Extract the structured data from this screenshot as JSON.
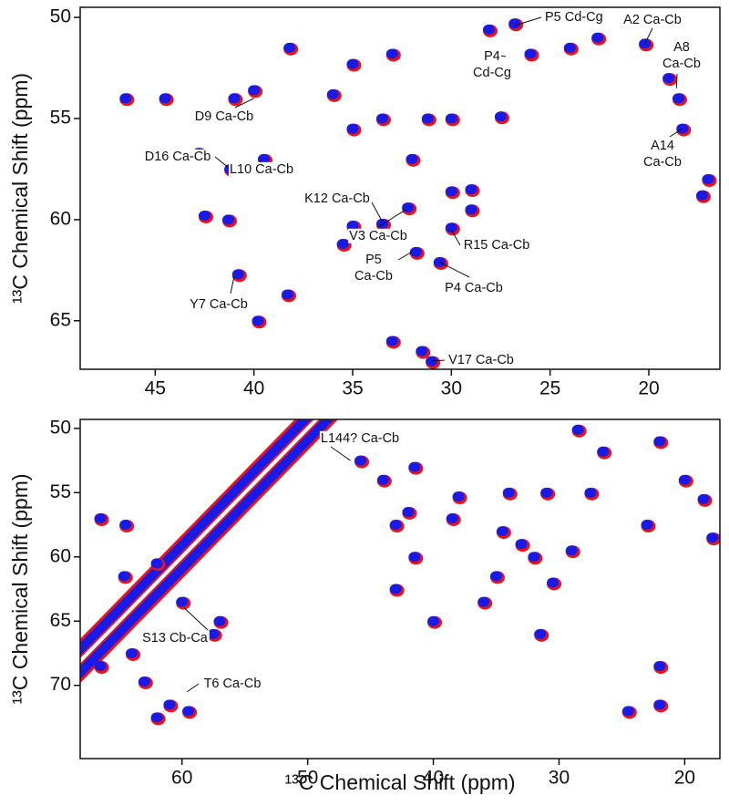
{
  "chart_data": [
    {
      "type": "contour",
      "ylabel": "¹³C Chemical Shift (ppm)",
      "xlim": [
        48.8,
        16.4
      ],
      "ylim": [
        49.5,
        67.4
      ],
      "xticks": [
        45,
        40,
        35,
        30,
        25,
        20
      ],
      "yticks": [
        50,
        55,
        60,
        65
      ],
      "contour_colors": [
        "#e8141b",
        "#1a1ae6"
      ],
      "diagonal": false,
      "peaks": {
        "x": [
          46.5,
          44.5,
          42.8,
          41.2,
          39.5,
          41,
          40,
          38.2,
          33.5,
          31.2,
          35,
          30,
          32,
          29,
          27.5,
          28.1,
          26.8,
          26,
          24,
          22.6,
          20.2,
          19,
          18.5,
          18.3,
          17,
          17.3,
          42.5,
          41.3,
          40.8,
          38.3,
          39.8,
          35,
          33.5,
          32.2,
          31.8,
          30.6,
          30,
          29,
          30,
          35.5,
          33,
          31.5,
          31,
          36,
          33,
          35
        ],
        "y": [
          54,
          54,
          56.7,
          57.5,
          57,
          54,
          53.6,
          51.5,
          55,
          55,
          55.5,
          55,
          57,
          58.5,
          54.9,
          50.6,
          50.3,
          51.8,
          51.5,
          51,
          51.3,
          53,
          54,
          55.5,
          58,
          58.8,
          59.8,
          60,
          62.7,
          63.7,
          65,
          60.3,
          60.2,
          59.4,
          61.6,
          62.1,
          60.4,
          59.5,
          58.6,
          61.2,
          66,
          66.5,
          67,
          53.8,
          51.8,
          52.3
        ]
      },
      "annotations": [
        {
          "text": [
            "P5 Cd-Cg"
          ],
          "x": 26.8,
          "y": 50.4
        },
        {
          "text": [
            "A2 Ca-Cb"
          ],
          "x": 20.2,
          "y": 51.3
        },
        {
          "text": [
            "P4",
            "Cd-Cg"
          ],
          "x": 28.2,
          "y": 51.8
        },
        {
          "text": [
            "A8",
            "Ca-Cb"
          ],
          "x": 18.6,
          "y": 53.5
        },
        {
          "text": [
            "A14",
            "Ca-Cb"
          ],
          "x": 18.3,
          "y": 55.5
        },
        {
          "text": [
            "D9 Ca-Cb"
          ],
          "x": 40,
          "y": 54
        },
        {
          "text": [
            "D16 Ca-Cb"
          ],
          "x": 41.2,
          "y": 57.5
        },
        {
          "text": [
            "L10 Ca-Cb"
          ],
          "x": 39.9,
          "y": 57.4
        },
        {
          "text": [
            "K12 Ca-Cb"
          ],
          "x": 33.5,
          "y": 60.1
        },
        {
          "text": [
            "V3 Ca-Cb"
          ],
          "x": 32.3,
          "y": 59.5
        },
        {
          "text": [
            "R15 Ca-Cb"
          ],
          "x": 30,
          "y": 60.5
        },
        {
          "text": [
            "P5",
            "Ca-Cb"
          ],
          "x": 32,
          "y": 61.6
        },
        {
          "text": [
            "P4 Ca-Cb"
          ],
          "x": 30.6,
          "y": 62.1
        },
        {
          "text": [
            "Y7 Ca-Cb"
          ],
          "x": 41,
          "y": 62.8
        },
        {
          "text": [
            "V17 Ca-Cb"
          ],
          "x": 31,
          "y": 67
        }
      ]
    },
    {
      "type": "contour",
      "xlabel": "¹³C Chemical Shift (ppm)",
      "ylabel": "¹³C Chemical Shift (ppm)",
      "xlim": [
        68.1,
        17.2
      ],
      "ylim": [
        49.3,
        75.7
      ],
      "xticks": [
        60,
        50,
        40,
        30,
        20
      ],
      "yticks": [
        50,
        55,
        60,
        65,
        70
      ],
      "contour_colors": [
        "#e8141b",
        "#1a1ae6"
      ],
      "diagonal": true,
      "peaks": {
        "x": [
          66.5,
          64.5,
          62,
          64.6,
          57.5,
          61,
          62,
          59.5,
          66.5,
          63,
          60,
          22,
          22,
          22,
          24.5,
          26.5,
          28.5,
          23,
          27.5,
          44,
          41.5,
          42,
          38,
          34,
          31,
          43,
          41.5,
          40,
          34.5,
          33,
          30.5,
          29,
          38.5,
          20,
          18.5,
          17.8,
          45.8,
          43,
          35,
          31.5,
          57,
          64,
          36,
          32
        ],
        "y": [
          57,
          57.5,
          60.5,
          61.5,
          66,
          71.5,
          72.5,
          72,
          68.5,
          69.7,
          63.5,
          51,
          71.5,
          68.5,
          72,
          51.8,
          50.1,
          57.5,
          55,
          54,
          53,
          56.5,
          55.3,
          55,
          55,
          57.5,
          60,
          65,
          58,
          59,
          62,
          59.5,
          57,
          54,
          55.5,
          58.5,
          52.5,
          62.5,
          61.5,
          66,
          65,
          67.5,
          63.5,
          60
        ]
      },
      "annotations": [
        {
          "text": [
            "L144? Ca-Cb"
          ],
          "x": 46.6,
          "y": 52.5
        },
        {
          "text": [
            "S13 Cb-Ca"
          ],
          "x": 59.8,
          "y": 64
        },
        {
          "text": [
            "T6 Ca-Cb"
          ],
          "x": 59.6,
          "y": 70.5
        }
      ]
    }
  ]
}
